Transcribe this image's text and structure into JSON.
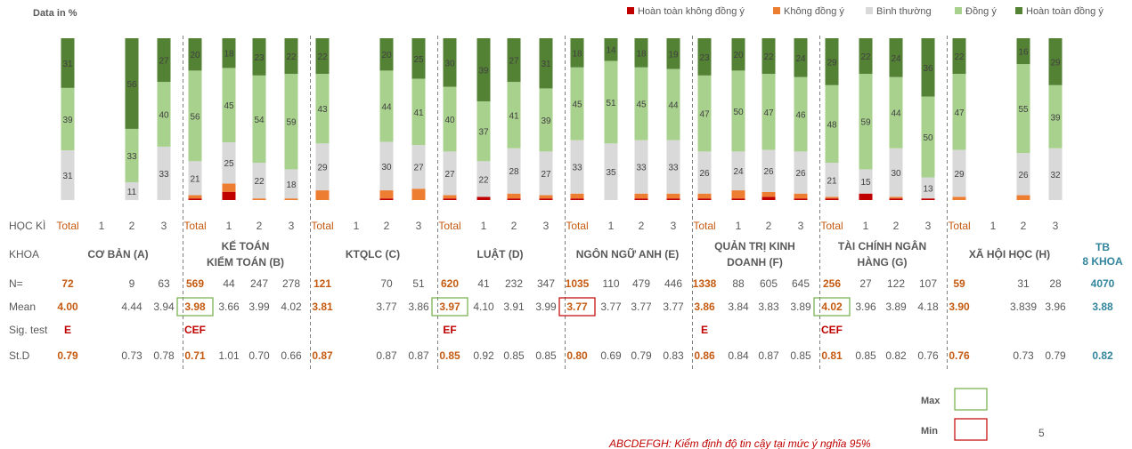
{
  "page": {
    "data_label": "Data in %",
    "row_labels": {
      "semester": "HỌC KÌ",
      "faculty": "KHOA",
      "n": "N=",
      "mean": "Mean",
      "sig": "Sig. test",
      "std": "St.D"
    },
    "legend_box": {
      "max_label": "Max",
      "min_label": "Min"
    },
    "footnote": "ABCDEFGH: Kiểm định độ tin cậy  tại mức ý nghĩa 95%",
    "page_number": "5",
    "overall": {
      "title_line1": "TB",
      "title_line2": "8 KHOA",
      "n": "4070",
      "mean": "3.88",
      "std": "0.82"
    }
  },
  "chart_data": {
    "type": "bar",
    "stacked": true,
    "ylabel": "Data in %",
    "ylim": [
      0,
      100
    ],
    "grid": false,
    "legend_position": "top-right",
    "series": [
      {
        "name": "Hoàn toàn không đồng ý",
        "color": "#c00000"
      },
      {
        "name": "Không đồng ý",
        "color": "#ed7d31"
      },
      {
        "name": "Bình thường",
        "color": "#d9d9d9"
      },
      {
        "name": "Đồng ý",
        "color": "#a9d18e"
      },
      {
        "name": "Hoàn toàn đồng ý",
        "color": "#548235"
      }
    ],
    "groups": [
      {
        "name_lines": [
          "CƠ BẢN (A)"
        ],
        "bars": [
          {
            "label": "Total",
            "n": "72",
            "mean": "4.00",
            "std": "0.79",
            "sig": "E",
            "values": [
              0,
              0,
              31,
              39,
              31
            ]
          },
          {
            "label": "1",
            "n": "",
            "mean": "",
            "std": "",
            "sig": "",
            "values": null
          },
          {
            "label": "2",
            "n": "9",
            "mean": "4.44",
            "std": "0.73",
            "sig": "",
            "values": [
              0,
              0,
              11,
              33,
              56
            ]
          },
          {
            "label": "3",
            "n": "63",
            "mean": "3.94",
            "std": "0.78",
            "sig": "",
            "values": [
              0,
              0,
              33,
              40,
              27
            ]
          }
        ]
      },
      {
        "name_lines": [
          "KẾ TOÁN",
          "KIỂM TOÁN (B)"
        ],
        "bars": [
          {
            "label": "Total",
            "n": "569",
            "mean": "3.98",
            "std": "0.71",
            "sig": "CEF",
            "mark": "max",
            "values": [
              1,
              2,
              21,
              56,
              20
            ]
          },
          {
            "label": "1",
            "n": "44",
            "mean": "3.66",
            "std": "1.01",
            "sig": "",
            "values": [
              5,
              5,
              25,
              45,
              18
            ]
          },
          {
            "label": "2",
            "n": "247",
            "mean": "3.99",
            "std": "0.70",
            "sig": "",
            "values": [
              0,
              1,
              22,
              54,
              23
            ]
          },
          {
            "label": "3",
            "n": "278",
            "mean": "4.02",
            "std": "0.66",
            "sig": "",
            "values": [
              0,
              1,
              18,
              59,
              22
            ]
          }
        ]
      },
      {
        "name_lines": [
          "KTQLC (C)"
        ],
        "bars": [
          {
            "label": "Total",
            "n": "121",
            "mean": "3.81",
            "std": "0.87",
            "sig": "",
            "values": [
              0,
              6,
              29,
              43,
              22
            ]
          },
          {
            "label": "1",
            "n": "",
            "mean": "",
            "std": "",
            "sig": "",
            "values": null
          },
          {
            "label": "2",
            "n": "70",
            "mean": "3.77",
            "std": "0.87",
            "sig": "",
            "values": [
              1,
              5,
              30,
              44,
              20
            ]
          },
          {
            "label": "3",
            "n": "51",
            "mean": "3.86",
            "std": "0.87",
            "sig": "",
            "values": [
              0,
              7,
              27,
              41,
              25
            ]
          }
        ]
      },
      {
        "name_lines": [
          "LUẬT (D)"
        ],
        "bars": [
          {
            "label": "Total",
            "n": "620",
            "mean": "3.97",
            "std": "0.85",
            "sig": "EF",
            "mark": "max",
            "values": [
              1,
              2,
              27,
              40,
              30
            ]
          },
          {
            "label": "1",
            "n": "41",
            "mean": "4.10",
            "std": "0.92",
            "sig": "",
            "values": [
              2,
              0,
              22,
              37,
              39
            ]
          },
          {
            "label": "2",
            "n": "232",
            "mean": "3.91",
            "std": "0.85",
            "sig": "",
            "values": [
              1,
              3,
              28,
              41,
              27
            ]
          },
          {
            "label": "3",
            "n": "347",
            "mean": "3.99",
            "std": "0.85",
            "sig": "",
            "values": [
              1,
              2,
              27,
              39,
              31
            ]
          }
        ]
      },
      {
        "name_lines": [
          "NGÔN NGỮ ANH (E)"
        ],
        "bars": [
          {
            "label": "Total",
            "n": "1035",
            "mean": "3.77",
            "std": "0.80",
            "sig": "",
            "mark": "min",
            "values": [
              1,
              3,
              33,
              45,
              18
            ]
          },
          {
            "label": "1",
            "n": "110",
            "mean": "3.77",
            "std": "0.69",
            "sig": "",
            "values": [
              0,
              0,
              35,
              51,
              14
            ]
          },
          {
            "label": "2",
            "n": "479",
            "mean": "3.77",
            "std": "0.79",
            "sig": "",
            "values": [
              1,
              3,
              33,
              45,
              18
            ]
          },
          {
            "label": "3",
            "n": "446",
            "mean": "3.77",
            "std": "0.83",
            "sig": "",
            "values": [
              1,
              3,
              33,
              44,
              19
            ]
          }
        ]
      },
      {
        "name_lines": [
          "QUẢN TRỊ KINH",
          "DOANH (F)"
        ],
        "bars": [
          {
            "label": "Total",
            "n": "1338",
            "mean": "3.86",
            "std": "0.86",
            "sig": "E",
            "values": [
              1,
              3,
              26,
              47,
              23
            ]
          },
          {
            "label": "1",
            "n": "88",
            "mean": "3.84",
            "std": "0.84",
            "sig": "",
            "values": [
              1,
              5,
              24,
              50,
              20
            ]
          },
          {
            "label": "2",
            "n": "605",
            "mean": "3.83",
            "std": "0.87",
            "sig": "",
            "values": [
              2,
              3,
              26,
              47,
              22
            ]
          },
          {
            "label": "3",
            "n": "645",
            "mean": "3.89",
            "std": "0.85",
            "sig": "",
            "values": [
              1,
              3,
              26,
              46,
              24
            ]
          }
        ]
      },
      {
        "name_lines": [
          "TÀI CHÍNH NGÂN",
          "HÀNG (G)"
        ],
        "bars": [
          {
            "label": "Total",
            "n": "256",
            "mean": "4.02",
            "std": "0.81",
            "sig": "CEF",
            "mark": "max",
            "values": [
              1,
              1,
              21,
              48,
              29
            ]
          },
          {
            "label": "1",
            "n": "27",
            "mean": "3.96",
            "std": "0.85",
            "sig": "",
            "values": [
              4,
              0,
              15,
              59,
              22
            ]
          },
          {
            "label": "2",
            "n": "122",
            "mean": "3.89",
            "std": "0.82",
            "sig": "",
            "values": [
              1,
              1,
              30,
              44,
              24
            ]
          },
          {
            "label": "3",
            "n": "107",
            "mean": "4.18",
            "std": "0.76",
            "sig": "",
            "values": [
              1,
              0,
              13,
              50,
              36
            ]
          }
        ]
      },
      {
        "name_lines": [
          "XÃ HỘI HỌC (H)"
        ],
        "bars": [
          {
            "label": "Total",
            "n": "59",
            "mean": "3.90",
            "std": "0.76",
            "sig": "",
            "values": [
              0,
              2,
              29,
              47,
              22
            ]
          },
          {
            "label": "1",
            "n": "",
            "mean": "",
            "std": "",
            "sig": "",
            "values": null
          },
          {
            "label": "2",
            "n": "31",
            "mean": "3.839",
            "std": "0.73",
            "sig": "",
            "values": [
              0,
              3,
              26,
              55,
              16
            ]
          },
          {
            "label": "3",
            "n": "28",
            "mean": "3.96",
            "std": "0.79",
            "sig": "",
            "values": [
              0,
              0,
              32,
              39,
              29
            ]
          }
        ]
      }
    ]
  }
}
